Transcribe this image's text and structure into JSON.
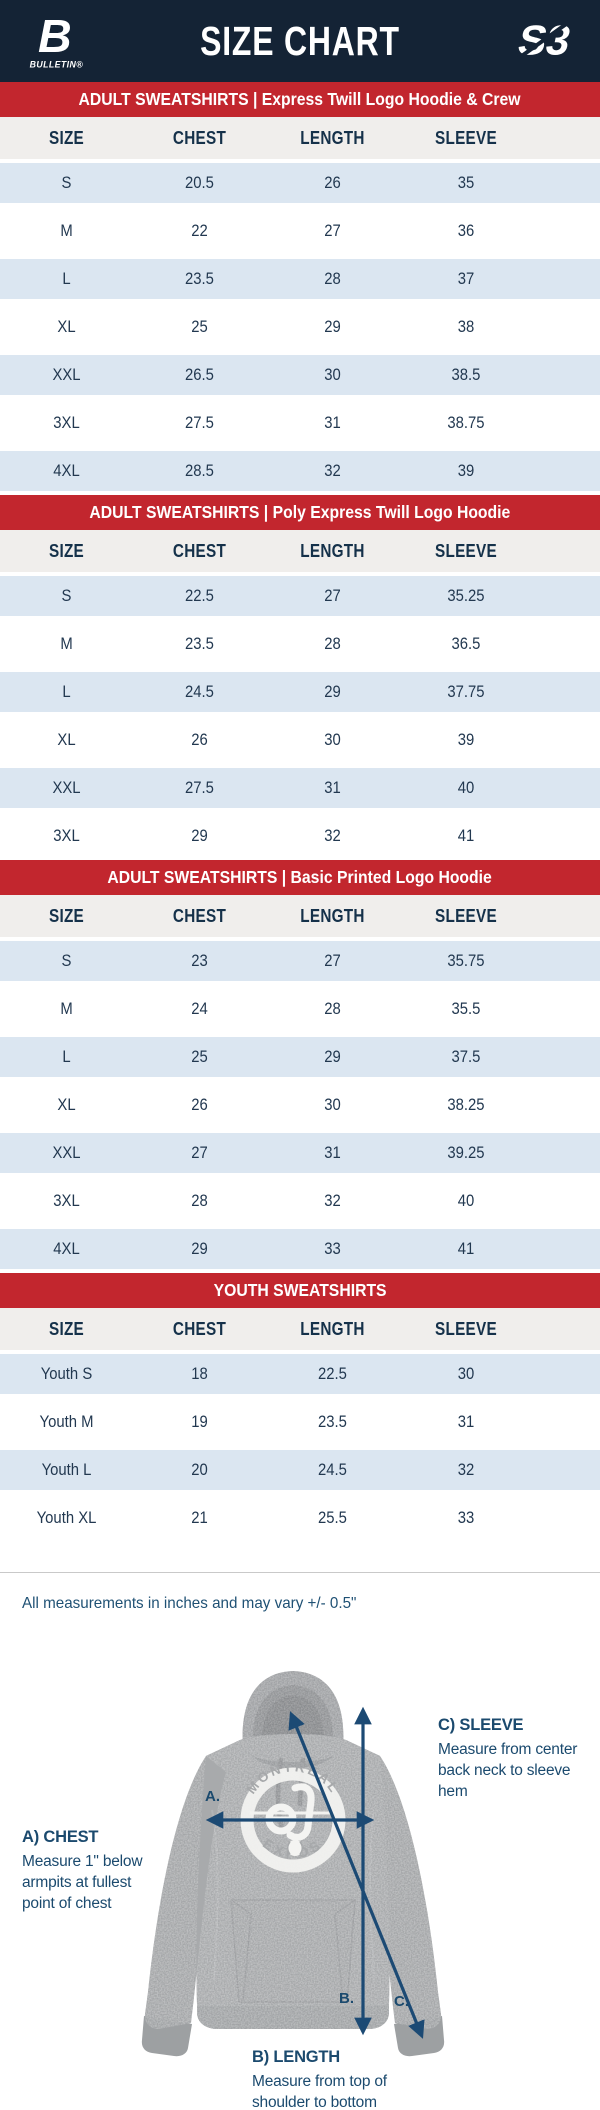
{
  "header": {
    "title": "SIZE CHART",
    "brand_left_initial": "B",
    "brand_left": "BULLETIN®",
    "brand_right": "S3"
  },
  "note": "All measurements in inches and may vary +/- 0.5\"",
  "chart_data": [
    {
      "type": "table",
      "title": "ADULT SWEATSHIRTS | Express Twill Logo Hoodie & Crew",
      "columns": [
        "SIZE",
        "CHEST",
        "LENGTH",
        "SLEEVE"
      ],
      "rows": [
        [
          "S",
          "20.5",
          "26",
          "35"
        ],
        [
          "M",
          "22",
          "27",
          "36"
        ],
        [
          "L",
          "23.5",
          "28",
          "37"
        ],
        [
          "XL",
          "25",
          "29",
          "38"
        ],
        [
          "XXL",
          "26.5",
          "30",
          "38.5"
        ],
        [
          "3XL",
          "27.5",
          "31",
          "38.75"
        ],
        [
          "4XL",
          "28.5",
          "32",
          "39"
        ]
      ]
    },
    {
      "type": "table",
      "title": "ADULT SWEATSHIRTS | Poly Express Twill Logo Hoodie",
      "columns": [
        "SIZE",
        "CHEST",
        "LENGTH",
        "SLEEVE"
      ],
      "rows": [
        [
          "S",
          "22.5",
          "27",
          "35.25"
        ],
        [
          "M",
          "23.5",
          "28",
          "36.5"
        ],
        [
          "L",
          "24.5",
          "29",
          "37.75"
        ],
        [
          "XL",
          "26",
          "30",
          "39"
        ],
        [
          "XXL",
          "27.5",
          "31",
          "40"
        ],
        [
          "3XL",
          "29",
          "32",
          "41"
        ]
      ]
    },
    {
      "type": "table",
      "title": "ADULT SWEATSHIRTS | Basic Printed Logo Hoodie",
      "columns": [
        "SIZE",
        "CHEST",
        "LENGTH",
        "SLEEVE"
      ],
      "rows": [
        [
          "S",
          "23",
          "27",
          "35.75"
        ],
        [
          "M",
          "24",
          "28",
          "35.5"
        ],
        [
          "L",
          "25",
          "29",
          "37.5"
        ],
        [
          "XL",
          "26",
          "30",
          "38.25"
        ],
        [
          "XXL",
          "27",
          "31",
          "39.25"
        ],
        [
          "3XL",
          "28",
          "32",
          "40"
        ],
        [
          "4XL",
          "29",
          "33",
          "41"
        ]
      ]
    },
    {
      "type": "table",
      "title": "YOUTH SWEATSHIRTS",
      "columns": [
        "SIZE",
        "CHEST",
        "LENGTH",
        "SLEEVE"
      ],
      "rows": [
        [
          "Youth S",
          "18",
          "22.5",
          "30"
        ],
        [
          "Youth M",
          "19",
          "23.5",
          "31"
        ],
        [
          "Youth L",
          "20",
          "24.5",
          "32"
        ],
        [
          "Youth XL",
          "21",
          "25.5",
          "33"
        ]
      ]
    }
  ],
  "diagram": {
    "chest": {
      "marker": "A.",
      "label": "A) CHEST",
      "desc": "Measure 1\" below armpits at fullest point of chest"
    },
    "length": {
      "marker": "B.",
      "label": "B) LENGTH",
      "desc": "Measure from top of shoulder to bottom of hem"
    },
    "sleeve": {
      "marker": "C.",
      "label": "C) SLEEVE",
      "desc": "Measure from center back neck to sleeve hem"
    },
    "garment_logo": {
      "top": "MONTRÉAL",
      "bottom": "EXPOS"
    }
  },
  "colors": {
    "navy_header": "#142335",
    "banner_red": "#c2262e",
    "row_blue": "#dbe6f1",
    "thead_gray": "#f0eeec",
    "table_text": "#223850",
    "diagram_blue": "#1b4a6e"
  }
}
